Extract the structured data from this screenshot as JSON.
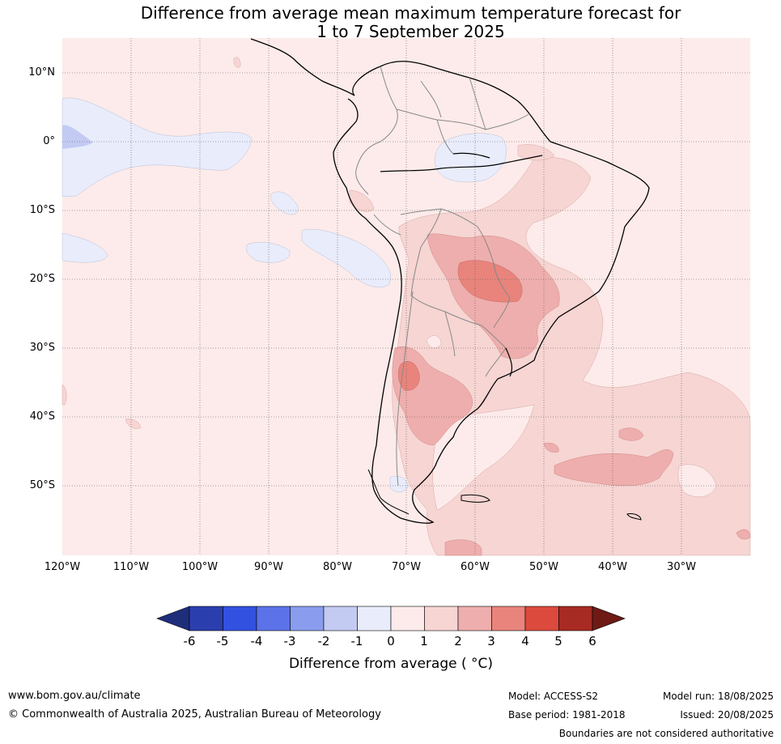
{
  "title_line1": "Difference from average mean maximum temperature forecast for",
  "title_line2": "1 to 7 September 2025",
  "lat_ticks": [
    "10°N",
    "0°",
    "10°S",
    "20°S",
    "30°S",
    "40°S",
    "50°S"
  ],
  "lon_ticks": [
    "120°W",
    "110°W",
    "100°W",
    "90°W",
    "80°W",
    "70°W",
    "60°W",
    "50°W",
    "40°W",
    "30°W"
  ],
  "colorbar": {
    "labels": [
      "-6",
      "-5",
      "-4",
      "-3",
      "-2",
      "-1",
      "0",
      "1",
      "2",
      "3",
      "4",
      "5",
      "6"
    ],
    "colors": [
      "#1f2e7a",
      "#2b3eae",
      "#3251e0",
      "#5c72e8",
      "#8a9ced",
      "#c3cbf3",
      "#e9ecfb",
      "#fcebea",
      "#f6d5d3",
      "#eeaead",
      "#e8847c",
      "#db4a3c",
      "#a72b22",
      "#6e1a15"
    ],
    "title": "Difference from average ( °C)"
  },
  "footer": {
    "website": "www.bom.gov.au/climate",
    "copyright": "© Commonwealth of Australia 2025, Australian Bureau of Meteorology",
    "model": "Model: ACCESS-S2",
    "base_period": "Base period: 1981-2018",
    "model_run": "Model run: 18/08/2025",
    "issued": "Issued: 20/08/2025",
    "disclaimer": "Boundaries are not considered authoritative"
  }
}
